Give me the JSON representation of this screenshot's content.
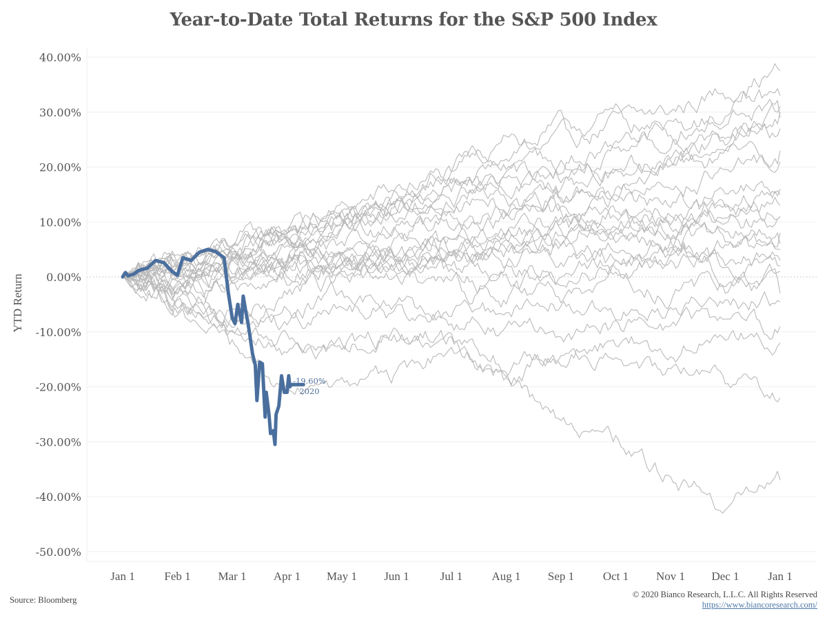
{
  "chart_data": {
    "type": "line",
    "title": "Year-to-Date Total Returns for the S&P 500 Index",
    "xlabel": "",
    "ylabel": "YTD Return",
    "ylim": [
      -50,
      40
    ],
    "yticks": [
      "40.00%",
      "30.00%",
      "20.00%",
      "10.00%",
      "0.00%",
      "-10.00%",
      "-20.00%",
      "-30.00%",
      "-40.00%",
      "-50.00%"
    ],
    "ytick_values": [
      40,
      30,
      20,
      10,
      0,
      -10,
      -20,
      -30,
      -40,
      -50
    ],
    "xticks": [
      "Jan 1",
      "Feb 1",
      "Mar 1",
      "Apr 1",
      "May 1",
      "Jun 1",
      "Jul 1",
      "Aug 1",
      "Sep 1",
      "Oct 1",
      "Nov 1",
      "Dec 1",
      "Jan 1"
    ],
    "x_units": "months since Jan 1 (0-12)",
    "grid": true,
    "zero_line": "dotted",
    "highlight": {
      "name": "2020",
      "color": "#4a6f9e",
      "annotation_value": "-19.60%",
      "annotation_label": "2020",
      "x": [
        0,
        0.05,
        0.1,
        0.2,
        0.3,
        0.45,
        0.6,
        0.75,
        0.9,
        1.0,
        1.1,
        1.25,
        1.4,
        1.55,
        1.7,
        1.85,
        1.93,
        2.0,
        2.05,
        2.1,
        2.17,
        2.2,
        2.25,
        2.28,
        2.32,
        2.37,
        2.42,
        2.45,
        2.5,
        2.55,
        2.6,
        2.62,
        2.67,
        2.7,
        2.75,
        2.78,
        2.8,
        2.85,
        2.9,
        2.95,
        3.0,
        3.03,
        3.05,
        3.08,
        3.1,
        3.15,
        3.18,
        3.22,
        3.27,
        3.3
      ],
      "y": [
        0,
        0.8,
        0.2,
        0.5,
        1.2,
        1.6,
        3.0,
        2.6,
        1.0,
        0.3,
        3.5,
        3.0,
        4.5,
        5.0,
        4.6,
        3.5,
        -3.0,
        -7.5,
        -8.5,
        -5.0,
        -8.3,
        -3.5,
        -6.5,
        -8.0,
        -10.5,
        -14.0,
        -16.0,
        -22.5,
        -15.5,
        -15.8,
        -25.5,
        -21.0,
        -25.0,
        -28.5,
        -28.0,
        -30.5,
        -25.0,
        -23.5,
        -18.0,
        -21.0,
        -21.0,
        -18.0,
        -20.0,
        -19.6,
        -19.6,
        -19.6,
        -19.6,
        -19.6,
        -19.6,
        -19.6
      ]
    },
    "historical_series": [
      {
        "name": "hist-1",
        "checkpoints": [
          0,
          3,
          5,
          8,
          10,
          14,
          17,
          20,
          24,
          28,
          30,
          34,
          37.5
        ]
      },
      {
        "name": "hist-2",
        "checkpoints": [
          0,
          2,
          6,
          9,
          12,
          16,
          19,
          23,
          27,
          29,
          26,
          30,
          33
        ]
      },
      {
        "name": "hist-3",
        "checkpoints": [
          0,
          1,
          4,
          7,
          11,
          13,
          15,
          18,
          21,
          24,
          27,
          29,
          31
        ]
      },
      {
        "name": "hist-4",
        "checkpoints": [
          0,
          -1,
          3,
          6,
          9,
          12,
          14,
          17,
          19,
          22,
          25,
          27,
          29
        ]
      },
      {
        "name": "hist-5",
        "checkpoints": [
          0,
          2,
          5,
          8,
          10,
          12,
          15,
          18,
          16,
          20,
          22,
          26,
          27
        ]
      },
      {
        "name": "hist-6",
        "checkpoints": [
          0,
          3,
          7,
          9,
          11,
          13,
          14,
          13,
          15,
          18,
          20,
          22,
          23
        ]
      },
      {
        "name": "hist-7",
        "checkpoints": [
          0,
          1,
          2,
          4,
          7,
          9,
          10,
          12,
          14,
          16,
          17,
          19,
          21
        ]
      },
      {
        "name": "hist-8",
        "checkpoints": [
          0,
          0,
          3,
          5,
          6,
          8,
          10,
          11,
          12,
          13,
          14,
          15,
          16
        ]
      },
      {
        "name": "hist-9",
        "checkpoints": [
          0,
          2,
          1,
          3,
          5,
          6,
          8,
          9,
          10,
          12,
          13,
          14,
          15
        ]
      },
      {
        "name": "hist-10",
        "checkpoints": [
          0,
          -2,
          0,
          2,
          4,
          5,
          6,
          8,
          9,
          10,
          11,
          12,
          13
        ]
      },
      {
        "name": "hist-11",
        "checkpoints": [
          0,
          1,
          3,
          4,
          3,
          5,
          7,
          8,
          9,
          9,
          10,
          11,
          11
        ]
      },
      {
        "name": "hist-12",
        "checkpoints": [
          0,
          -1,
          1,
          2,
          4,
          3,
          5,
          6,
          7,
          8,
          8,
          9,
          8
        ]
      },
      {
        "name": "hist-13",
        "checkpoints": [
          0,
          2,
          3,
          1,
          2,
          4,
          5,
          4,
          6,
          7,
          6,
          7,
          6
        ]
      },
      {
        "name": "hist-14",
        "checkpoints": [
          0,
          -2,
          -1,
          0,
          2,
          3,
          2,
          4,
          3,
          5,
          4,
          5,
          5
        ]
      },
      {
        "name": "hist-15",
        "checkpoints": [
          0,
          1,
          0,
          2,
          1,
          3,
          4,
          3,
          4,
          2,
          3,
          2,
          2
        ]
      },
      {
        "name": "hist-16",
        "checkpoints": [
          0,
          -3,
          -2,
          0,
          1,
          2,
          1,
          2,
          0,
          1,
          2,
          1,
          1
        ]
      },
      {
        "name": "hist-17",
        "checkpoints": [
          0,
          -4,
          -6,
          -3,
          -1,
          0,
          -2,
          -4,
          -3,
          -1,
          -3,
          -2,
          -3
        ]
      },
      {
        "name": "hist-18",
        "checkpoints": [
          0,
          -5,
          -8,
          -6,
          -4,
          -6,
          -8,
          -6,
          -5,
          -7,
          -6,
          -5,
          -4.5
        ]
      },
      {
        "name": "hist-19",
        "checkpoints": [
          0,
          -3,
          -6,
          -9,
          -7,
          -5,
          -8,
          -11,
          -10,
          -9,
          -10,
          -8,
          -9
        ]
      },
      {
        "name": "hist-20",
        "checkpoints": [
          0,
          -6,
          -9,
          -12,
          -14,
          -10,
          -12,
          -16,
          -14,
          -12,
          -13,
          -11,
          -12
        ]
      },
      {
        "name": "hist-21",
        "checkpoints": [
          0,
          -4,
          -10,
          -14,
          -12,
          -11,
          -13,
          -18,
          -15,
          -14,
          -17,
          -19,
          -22
        ]
      },
      {
        "name": "hist-22",
        "checkpoints": [
          0,
          -5,
          -13,
          -20,
          -22,
          -18,
          -14,
          -20,
          -26,
          -30,
          -36,
          -42,
          -37
        ]
      },
      {
        "name": "hist-23",
        "checkpoints": [
          0,
          3,
          6,
          8,
          11,
          14,
          18,
          15,
          12,
          10,
          8,
          10,
          11
        ]
      },
      {
        "name": "hist-24",
        "checkpoints": [
          0,
          2,
          4,
          6,
          9,
          12,
          20,
          24,
          22,
          18,
          21,
          25,
          30
        ]
      },
      {
        "name": "hist-25",
        "checkpoints": [
          0,
          -2,
          2,
          5,
          4,
          2,
          0,
          -2,
          1,
          3,
          5,
          4,
          3
        ]
      }
    ]
  },
  "footer": {
    "source": "Source: Bloomberg",
    "copyright": "© 2020 Bianco Research, L.L.C. All Rights Reserved",
    "url": "https://www.biancoresearch.com/"
  }
}
